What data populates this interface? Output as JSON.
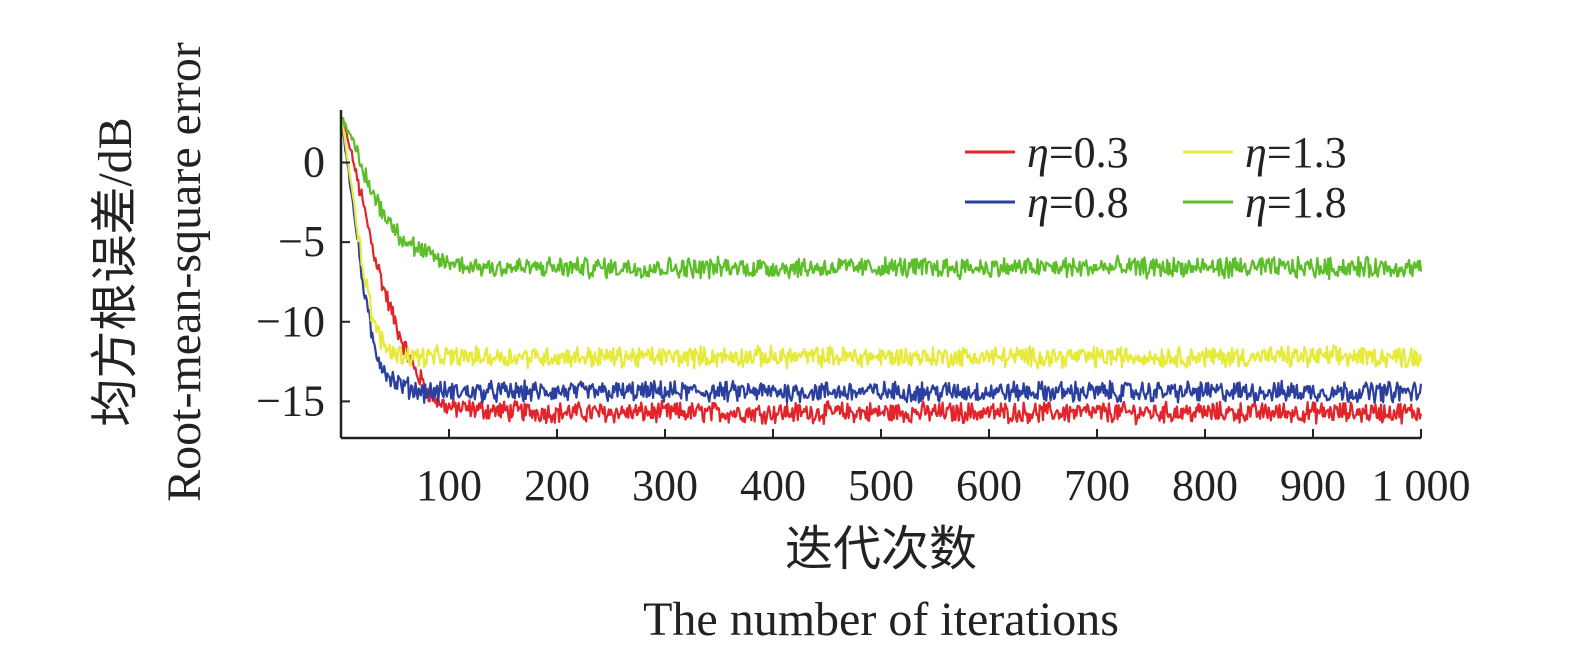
{
  "chart_data": {
    "type": "line",
    "title": "",
    "xlabel_cn": "迭代次数",
    "xlabel": "The number of iterations",
    "ylabel_cn": "均方根误差/dB",
    "ylabel": "Root-mean-square error",
    "xlim": [
      0,
      1000
    ],
    "ylim": [
      -17.3,
      3.3
    ],
    "x_ticks": [
      100,
      200,
      300,
      400,
      500,
      600,
      700,
      800,
      900,
      1000
    ],
    "x_tick_labels": [
      "100",
      "200",
      "300",
      "400",
      "500",
      "600",
      "700",
      "800",
      "900",
      "1 000"
    ],
    "y_ticks": [
      0,
      -5,
      -10,
      -15
    ],
    "y_tick_labels": [
      "0",
      "−5",
      "−10",
      "−15"
    ],
    "grid": false,
    "legend_position": "top-right",
    "legend_symbol": "η",
    "series": [
      {
        "name": "=0.3",
        "color": "#e3242b",
        "x": [
          0,
          10,
          20,
          30,
          40,
          50,
          60,
          70,
          80,
          90,
          100,
          150,
          200,
          300,
          400,
          500,
          600,
          700,
          800,
          900,
          1000
        ],
        "values": [
          3.0,
          0.5,
          -2.5,
          -5.5,
          -8.0,
          -10.0,
          -11.8,
          -13.2,
          -14.3,
          -15.0,
          -15.4,
          -15.6,
          -15.7,
          -15.7,
          -15.7,
          -15.7,
          -15.7,
          -15.7,
          -15.7,
          -15.7,
          -15.7
        ]
      },
      {
        "name": "=0.8",
        "color": "#2b3f9e",
        "x": [
          0,
          10,
          20,
          30,
          40,
          50,
          60,
          70,
          80,
          90,
          100,
          150,
          200,
          300,
          400,
          500,
          600,
          700,
          800,
          900,
          1000
        ],
        "values": [
          3.0,
          -2.0,
          -7.5,
          -11.5,
          -13.0,
          -13.8,
          -14.1,
          -14.3,
          -14.4,
          -14.4,
          -14.4,
          -14.4,
          -14.4,
          -14.4,
          -14.4,
          -14.4,
          -14.4,
          -14.4,
          -14.4,
          -14.4,
          -14.4
        ]
      },
      {
        "name": "=1.3",
        "color": "#e6ea3a",
        "x": [
          0,
          10,
          20,
          30,
          40,
          50,
          60,
          70,
          80,
          90,
          100,
          150,
          200,
          300,
          400,
          500,
          600,
          700,
          800,
          900,
          1000
        ],
        "values": [
          3.0,
          -1.5,
          -6.5,
          -10.0,
          -11.5,
          -12.0,
          -12.1,
          -12.2,
          -12.2,
          -12.2,
          -12.2,
          -12.2,
          -12.2,
          -12.2,
          -12.2,
          -12.2,
          -12.2,
          -12.2,
          -12.2,
          -12.2,
          -12.2
        ]
      },
      {
        "name": "=1.8",
        "color": "#5cbf2a",
        "x": [
          0,
          10,
          20,
          30,
          40,
          50,
          60,
          70,
          80,
          90,
          100,
          120,
          150,
          200,
          300,
          400,
          500,
          600,
          700,
          800,
          900,
          1000
        ],
        "values": [
          3.0,
          1.5,
          -0.5,
          -2.0,
          -3.2,
          -4.2,
          -4.9,
          -5.4,
          -5.8,
          -6.1,
          -6.3,
          -6.5,
          -6.6,
          -6.6,
          -6.6,
          -6.6,
          -6.6,
          -6.6,
          -6.6,
          -6.6,
          -6.6,
          -6.6
        ]
      }
    ]
  }
}
